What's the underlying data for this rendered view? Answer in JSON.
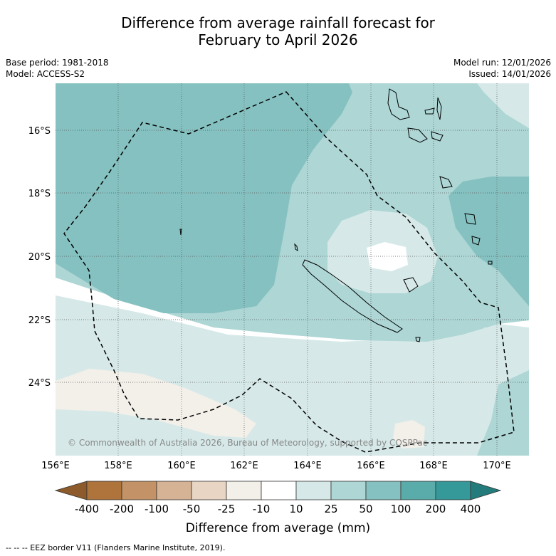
{
  "title": {
    "line1": "Difference from average rainfall forecast for",
    "line2": "February to April 2026"
  },
  "meta": {
    "base_period": "Base period: 1981-2018",
    "model": "Model: ACCESS-S2",
    "model_run": "Model run: 12/01/2026",
    "issued": "Issued: 14/01/2026"
  },
  "map": {
    "lat_labels": [
      "16°S",
      "18°S",
      "20°S",
      "22°S",
      "24°S"
    ],
    "lon_labels": [
      "156°E",
      "158°E",
      "160°E",
      "162°E",
      "164°E",
      "166°E",
      "168°E",
      "170°E"
    ],
    "copyright": "© Commonwealth of Australia 2026, Bureau of Meteorology, supported by COSPPac"
  },
  "colorbar": {
    "label": "Difference from average (mm)",
    "ticks": [
      "-400",
      "-200",
      "-100",
      "-50",
      "-25",
      "-10",
      "10",
      "25",
      "50",
      "100",
      "200",
      "400"
    ],
    "colors": [
      "#8c5a2b",
      "#ae743c",
      "#c39266",
      "#d6b394",
      "#e8d5c3",
      "#f3efe9",
      "#ffffff",
      "#d6e9e8",
      "#add6d5",
      "#85c1c0",
      "#5aacab",
      "#35999a",
      "#237b7c"
    ]
  },
  "footer": "--  --  -- EEZ border V11 (Flanders Marine Institute, 2019)."
}
